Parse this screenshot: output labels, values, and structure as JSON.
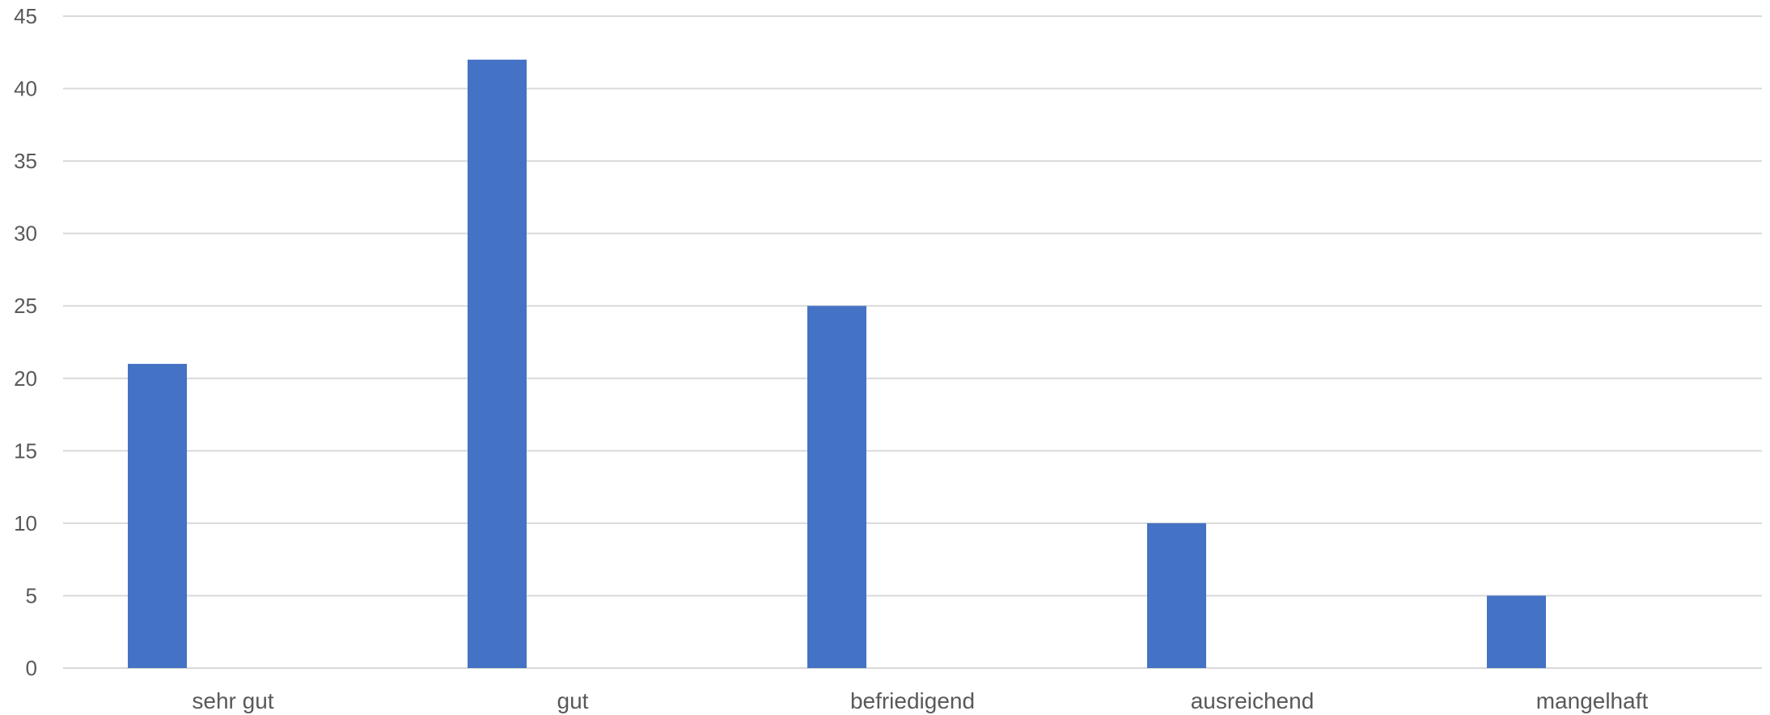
{
  "chart_data": {
    "type": "bar",
    "title": "",
    "xlabel": "",
    "ylabel": "",
    "categories": [
      "sehr gut",
      "gut",
      "befriedigend",
      "ausreichend",
      "mangelhaft"
    ],
    "values": [
      21,
      42,
      25,
      10,
      5
    ],
    "ylim": [
      0,
      45
    ],
    "yticks": [
      0,
      5,
      10,
      15,
      20,
      25,
      30,
      35,
      40,
      45
    ],
    "grid": true,
    "legend": "none",
    "bar_color": "#4472C4",
    "grid_color": "#D9D9D9"
  }
}
